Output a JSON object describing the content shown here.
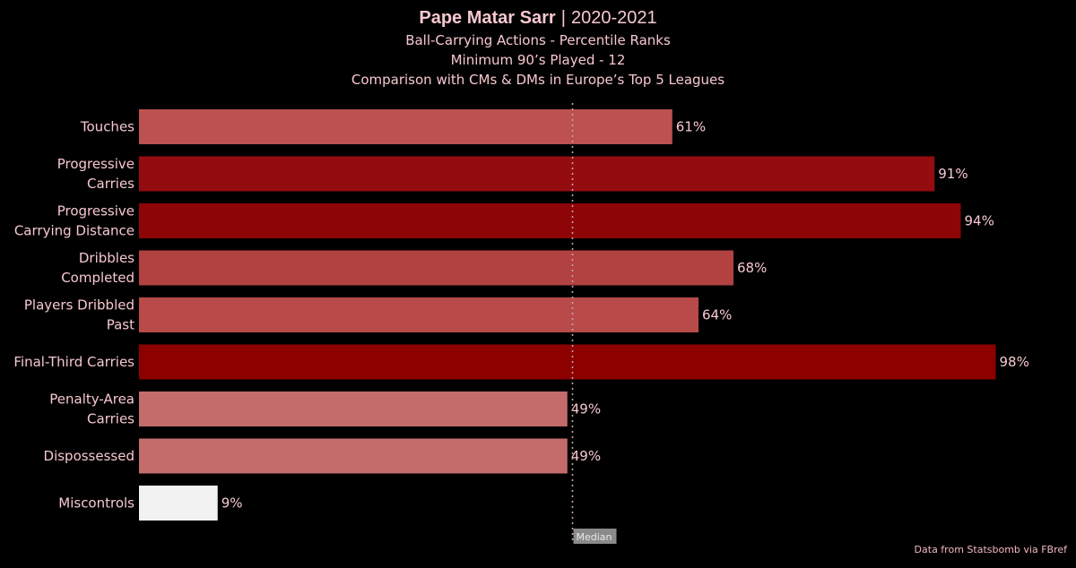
{
  "header": {
    "player": "Pape Matar Sarr",
    "separator": "|",
    "season": "2020-2021",
    "subtitle": "Ball-Carrying Actions - Percentile Ranks",
    "minimum": "Minimum 90’s Played - 12",
    "comparison": "Comparison with CMs & DMs in Europe’s Top 5 Leagues"
  },
  "source": "Data from Statsbomb via FBref",
  "colors": {
    "background": "#000000",
    "text": "#f7c8cf",
    "median_line": "#c9a0a8",
    "median_box": "#8a8a8a"
  },
  "chart_data": {
    "type": "bar",
    "orientation": "horizontal",
    "categories": [
      [
        "Touches"
      ],
      [
        "Progressive",
        "Carries"
      ],
      [
        "Progressive",
        "Carrying Distance"
      ],
      [
        "Dribbles",
        "Completed"
      ],
      [
        "Players Dribbled",
        "Past"
      ],
      [
        "Final-Third Carries"
      ],
      [
        "Penalty-Area",
        "Carries"
      ],
      [
        "Dispossessed"
      ],
      [
        "Miscontrols"
      ]
    ],
    "values": [
      61,
      91,
      94,
      68,
      64,
      98,
      49,
      49,
      9
    ],
    "value_labels": [
      "61%",
      "91%",
      "94%",
      "68%",
      "64%",
      "98%",
      "49%",
      "49%",
      "9%"
    ],
    "bar_colors": [
      "#bd5050",
      "#940c10",
      "#8d0507",
      "#b24141",
      "#b84a4a",
      "#8c0000",
      "#c46c6c",
      "#c46c6c",
      "#f2f2f2"
    ],
    "median": 50,
    "median_label": "Median",
    "xlim": [
      0,
      100
    ],
    "grid": false
  }
}
